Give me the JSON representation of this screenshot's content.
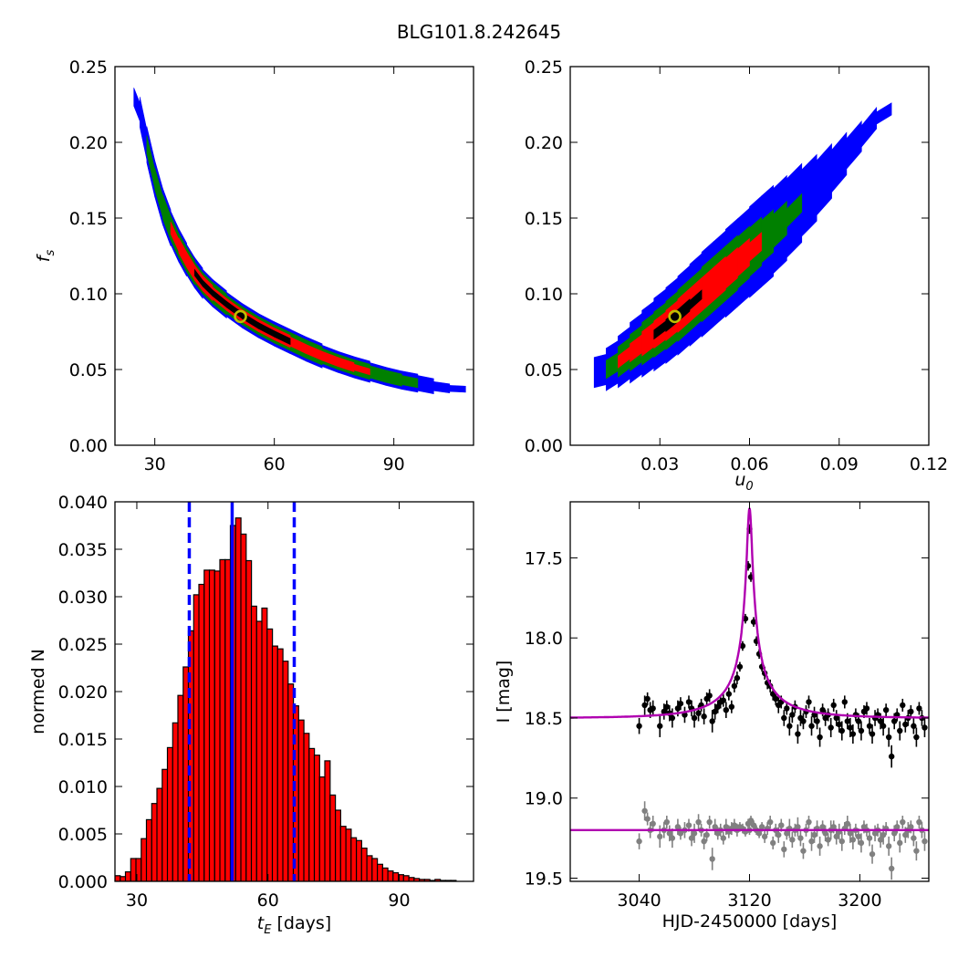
{
  "figure": {
    "title": "BLG101.8.242645"
  },
  "colors": {
    "blue": "#0000ff",
    "green": "#008000",
    "red": "#ff0000",
    "black": "#000000",
    "marker_edge": "#bfbf00",
    "model": "#b000b0",
    "grey": "#808080"
  },
  "chart_data": [
    {
      "id": "fs_vs_tE",
      "type": "heatmap",
      "title": "",
      "xlabel": "",
      "ylabel": "f_s",
      "xlim": [
        20,
        110
      ],
      "ylim": [
        0.0,
        0.25
      ],
      "xticks": [
        30,
        60,
        90
      ],
      "yticks": [
        0.0,
        0.05,
        0.1,
        0.15,
        0.2,
        0.25
      ],
      "best_fit": {
        "x": 51.5,
        "y": 0.085
      },
      "confidence_band": {
        "x": [
          25.5,
          27.0,
          29.0,
          31.0,
          33.0,
          35.0,
          37.0,
          39.0,
          41.0,
          43.0,
          46.0,
          50.0,
          54.0,
          58.0,
          62.0,
          66.0,
          70.0,
          74.0,
          78.0,
          82.0,
          86.0,
          90.0,
          94.0,
          98.0,
          102.0,
          106.0
        ],
        "y": [
          0.23,
          0.21,
          0.187,
          0.165,
          0.15,
          0.137,
          0.127,
          0.118,
          0.11,
          0.104,
          0.097,
          0.089,
          0.082,
          0.076,
          0.071,
          0.066,
          0.061,
          0.057,
          0.053,
          0.05,
          0.047,
          0.044,
          0.042,
          0.04,
          0.038,
          0.037
        ],
        "halfwidth_blue": [
          0.006,
          0.01,
          0.012,
          0.012,
          0.012,
          0.011,
          0.011,
          0.01,
          0.01,
          0.009,
          0.009,
          0.008,
          0.008,
          0.008,
          0.008,
          0.008,
          0.008,
          0.007,
          0.007,
          0.007,
          0.006,
          0.006,
          0.006,
          0.005,
          0.003,
          0.002
        ],
        "halfwidth_green": [
          0.0,
          0.0,
          0.006,
          0.007,
          0.008,
          0.008,
          0.008,
          0.008,
          0.007,
          0.007,
          0.007,
          0.006,
          0.006,
          0.006,
          0.006,
          0.006,
          0.006,
          0.005,
          0.005,
          0.005,
          0.004,
          0.004,
          0.003,
          0.0,
          0.0,
          0.0
        ],
        "halfwidth_red": [
          0.0,
          0.0,
          0.0,
          0.0,
          0.0,
          0.004,
          0.005,
          0.005,
          0.005,
          0.005,
          0.004,
          0.004,
          0.004,
          0.004,
          0.004,
          0.003,
          0.003,
          0.003,
          0.003,
          0.002,
          0.0,
          0.0,
          0.0,
          0.0,
          0.0,
          0.0
        ],
        "halfwidth_black": [
          0.0,
          0.0,
          0.0,
          0.0,
          0.0,
          0.0,
          0.0,
          0.0,
          0.002,
          0.002,
          0.002,
          0.002,
          0.002,
          0.002,
          0.002,
          0.0,
          0.0,
          0.0,
          0.0,
          0.0,
          0.0,
          0.0,
          0.0,
          0.0,
          0.0,
          0.0
        ]
      }
    },
    {
      "id": "fs_vs_u0",
      "type": "heatmap",
      "title": "",
      "xlabel": "u_0",
      "ylabel": "",
      "xlim": [
        0.0,
        0.12
      ],
      "ylim": [
        0.0,
        0.25
      ],
      "xticks": [
        0.03,
        0.06,
        0.09,
        0.12
      ],
      "yticks": [
        0.0,
        0.05,
        0.1,
        0.15,
        0.2,
        0.25
      ],
      "best_fit": {
        "x": 0.035,
        "y": 0.085
      },
      "confidence_band": {
        "x": [
          0.01,
          0.014,
          0.018,
          0.022,
          0.026,
          0.03,
          0.034,
          0.038,
          0.042,
          0.046,
          0.05,
          0.054,
          0.058,
          0.062,
          0.066,
          0.07,
          0.075,
          0.08,
          0.085,
          0.09,
          0.095,
          0.1,
          0.105
        ],
        "y": [
          0.048,
          0.052,
          0.058,
          0.064,
          0.07,
          0.076,
          0.082,
          0.089,
          0.096,
          0.103,
          0.11,
          0.117,
          0.124,
          0.131,
          0.138,
          0.145,
          0.155,
          0.165,
          0.175,
          0.187,
          0.198,
          0.21,
          0.222
        ],
        "halfwidth_blue": [
          0.01,
          0.014,
          0.017,
          0.02,
          0.022,
          0.024,
          0.025,
          0.026,
          0.027,
          0.028,
          0.028,
          0.029,
          0.029,
          0.03,
          0.03,
          0.028,
          0.026,
          0.022,
          0.018,
          0.014,
          0.01,
          0.007,
          0.004
        ],
        "halfwidth_green": [
          0.0,
          0.006,
          0.01,
          0.012,
          0.014,
          0.015,
          0.016,
          0.017,
          0.017,
          0.018,
          0.018,
          0.018,
          0.017,
          0.016,
          0.014,
          0.011,
          0.006,
          0.0,
          0.0,
          0.0,
          0.0,
          0.0,
          0.0
        ],
        "halfwidth_red": [
          0.0,
          0.0,
          0.004,
          0.006,
          0.008,
          0.009,
          0.01,
          0.011,
          0.011,
          0.011,
          0.011,
          0.01,
          0.009,
          0.006,
          0.0,
          0.0,
          0.0,
          0.0,
          0.0,
          0.0,
          0.0,
          0.0,
          0.0
        ],
        "halfwidth_black": [
          0.0,
          0.0,
          0.0,
          0.0,
          0.0,
          0.003,
          0.004,
          0.004,
          0.003,
          0.0,
          0.0,
          0.0,
          0.0,
          0.0,
          0.0,
          0.0,
          0.0,
          0.0,
          0.0,
          0.0,
          0.0,
          0.0,
          0.0
        ]
      }
    },
    {
      "id": "tE_histogram",
      "type": "bar",
      "title": "",
      "xlabel": "t_E [days]",
      "ylabel": "normed N",
      "xlim": [
        25,
        107
      ],
      "ylim": [
        0.0,
        0.04
      ],
      "xticks": [
        30,
        60,
        90
      ],
      "yticks": [
        0.0,
        0.005,
        0.01,
        0.015,
        0.02,
        0.025,
        0.03,
        0.035,
        0.04
      ],
      "bin_width": 1.2,
      "bin_start": 25,
      "values": [
        0.0006,
        0.0005,
        0.001,
        0.0024,
        0.0024,
        0.0045,
        0.0065,
        0.0082,
        0.0098,
        0.0118,
        0.0141,
        0.0167,
        0.0196,
        0.0226,
        0.0264,
        0.0302,
        0.0313,
        0.0328,
        0.0328,
        0.0327,
        0.0339,
        0.0339,
        0.0375,
        0.0383,
        0.0366,
        0.0338,
        0.029,
        0.0274,
        0.0288,
        0.0266,
        0.0248,
        0.0245,
        0.0232,
        0.0208,
        0.0185,
        0.017,
        0.0156,
        0.014,
        0.0133,
        0.011,
        0.0127,
        0.0091,
        0.0075,
        0.0058,
        0.0055,
        0.0046,
        0.0043,
        0.0035,
        0.0027,
        0.0024,
        0.0018,
        0.0014,
        0.0011,
        0.0009,
        0.0007,
        0.0006,
        0.0004,
        0.0003,
        0.0002,
        0.0002,
        0.0001,
        0.0002,
        0.0001,
        0.0001,
        0.0001,
        0.0,
        0.0
      ],
      "best_fit_line": 51.8,
      "confidence_lines": [
        42.0,
        66.0
      ]
    },
    {
      "id": "light_curve",
      "type": "scatter",
      "title": "",
      "xlabel": "HJD-2450000 [days]",
      "ylabel": "I [mag]",
      "xlim": [
        2990,
        3250
      ],
      "ylim": [
        19.52,
        17.15
      ],
      "xticks": [
        3040,
        3120,
        3200
      ],
      "yticks": [
        17.5,
        18.0,
        18.5,
        19.0,
        19.5
      ],
      "model": {
        "t0": 3120.0,
        "tE": 51.5,
        "u0": 0.035,
        "baseline_mag": 18.5,
        "fs": 0.085
      },
      "residual_baseline_mag": 19.2,
      "data_points": {
        "t": [
          3040,
          3044,
          3046,
          3048,
          3050,
          3055,
          3058,
          3060,
          3062,
          3064,
          3068,
          3070,
          3073,
          3076,
          3078,
          3080,
          3083,
          3085,
          3087,
          3089,
          3091,
          3093,
          3095,
          3097,
          3099,
          3101,
          3103,
          3105,
          3107,
          3109,
          3111,
          3113,
          3115,
          3117,
          3119,
          3120,
          3121,
          3123,
          3125,
          3127,
          3129,
          3131,
          3133,
          3135,
          3137,
          3139,
          3141,
          3143,
          3145,
          3147,
          3149,
          3151,
          3153,
          3155,
          3157,
          3159,
          3161,
          3163,
          3165,
          3167,
          3169,
          3171,
          3173,
          3175,
          3177,
          3179,
          3181,
          3183,
          3185,
          3187,
          3189,
          3191,
          3193,
          3195,
          3197,
          3199,
          3201,
          3203,
          3205,
          3207,
          3209,
          3211,
          3213,
          3215,
          3217,
          3219,
          3221,
          3223,
          3225,
          3227,
          3229,
          3231,
          3233,
          3235,
          3237,
          3239,
          3241,
          3243,
          3245,
          3247
        ],
        "mag": [
          18.55,
          18.42,
          18.38,
          18.45,
          18.44,
          18.55,
          18.46,
          18.43,
          18.47,
          18.5,
          18.44,
          18.41,
          18.48,
          18.4,
          18.44,
          18.5,
          18.47,
          18.42,
          18.49,
          18.38,
          18.36,
          18.52,
          18.46,
          18.43,
          18.4,
          18.39,
          18.45,
          18.35,
          18.43,
          18.3,
          18.25,
          18.18,
          18.05,
          17.88,
          17.55,
          17.32,
          17.62,
          17.9,
          18.02,
          18.1,
          18.18,
          18.22,
          18.28,
          18.3,
          18.35,
          18.38,
          18.42,
          18.4,
          18.5,
          18.44,
          18.55,
          18.48,
          18.43,
          18.6,
          18.5,
          18.52,
          18.46,
          18.4,
          18.55,
          18.48,
          18.52,
          18.62,
          18.45,
          18.5,
          18.48,
          18.56,
          18.42,
          18.5,
          18.54,
          18.58,
          18.4,
          18.52,
          18.56,
          18.6,
          18.48,
          18.52,
          18.58,
          18.46,
          18.44,
          18.55,
          18.6,
          18.5,
          18.48,
          18.52,
          18.55,
          18.45,
          18.62,
          18.74,
          18.52,
          18.48,
          18.58,
          18.42,
          18.54,
          18.5,
          18.46,
          18.55,
          18.62,
          18.44,
          18.5,
          18.56
        ],
        "err": [
          0.05,
          0.06,
          0.04,
          0.05,
          0.05,
          0.07,
          0.05,
          0.04,
          0.05,
          0.06,
          0.05,
          0.04,
          0.05,
          0.04,
          0.05,
          0.06,
          0.05,
          0.04,
          0.05,
          0.04,
          0.04,
          0.07,
          0.05,
          0.04,
          0.04,
          0.04,
          0.05,
          0.04,
          0.04,
          0.04,
          0.04,
          0.03,
          0.03,
          0.03,
          0.03,
          0.03,
          0.03,
          0.03,
          0.03,
          0.03,
          0.03,
          0.04,
          0.04,
          0.04,
          0.04,
          0.04,
          0.05,
          0.04,
          0.05,
          0.04,
          0.06,
          0.05,
          0.04,
          0.06,
          0.05,
          0.05,
          0.04,
          0.04,
          0.06,
          0.05,
          0.05,
          0.06,
          0.04,
          0.05,
          0.04,
          0.06,
          0.04,
          0.05,
          0.05,
          0.06,
          0.04,
          0.05,
          0.06,
          0.06,
          0.04,
          0.05,
          0.06,
          0.04,
          0.04,
          0.05,
          0.06,
          0.05,
          0.04,
          0.05,
          0.06,
          0.04,
          0.06,
          0.07,
          0.05,
          0.04,
          0.06,
          0.04,
          0.05,
          0.05,
          0.04,
          0.05,
          0.06,
          0.04,
          0.05,
          0.06
        ]
      },
      "residual_points": {
        "t": [
          3040,
          3044,
          3046,
          3048,
          3050,
          3055,
          3058,
          3060,
          3062,
          3064,
          3068,
          3070,
          3073,
          3076,
          3078,
          3080,
          3083,
          3085,
          3087,
          3089,
          3091,
          3093,
          3095,
          3097,
          3099,
          3101,
          3103,
          3105,
          3107,
          3109,
          3111,
          3113,
          3115,
          3117,
          3119,
          3120,
          3121,
          3123,
          3125,
          3127,
          3129,
          3131,
          3133,
          3135,
          3137,
          3139,
          3141,
          3143,
          3145,
          3147,
          3149,
          3151,
          3153,
          3155,
          3157,
          3159,
          3161,
          3163,
          3165,
          3167,
          3169,
          3171,
          3173,
          3175,
          3177,
          3179,
          3181,
          3183,
          3185,
          3187,
          3189,
          3191,
          3193,
          3195,
          3197,
          3199,
          3201,
          3203,
          3205,
          3207,
          3209,
          3211,
          3213,
          3215,
          3217,
          3219,
          3221,
          3223,
          3225,
          3227,
          3229,
          3231,
          3233,
          3235,
          3237,
          3239,
          3241,
          3243,
          3245,
          3247
        ],
        "mag": [
          19.27,
          19.08,
          19.13,
          19.2,
          19.16,
          19.24,
          19.2,
          19.15,
          19.22,
          19.25,
          19.18,
          19.22,
          19.2,
          19.17,
          19.25,
          19.22,
          19.15,
          19.2,
          19.27,
          19.23,
          19.15,
          19.38,
          19.18,
          19.22,
          19.2,
          19.25,
          19.18,
          19.21,
          19.19,
          19.17,
          19.2,
          19.18,
          19.19,
          19.21,
          19.16,
          19.2,
          19.14,
          19.17,
          19.2,
          19.22,
          19.18,
          19.24,
          19.19,
          19.15,
          19.28,
          19.2,
          19.23,
          19.17,
          19.32,
          19.22,
          19.19,
          19.26,
          19.2,
          19.18,
          19.25,
          19.33,
          19.2,
          19.15,
          19.27,
          19.23,
          19.19,
          19.3,
          19.18,
          19.22,
          19.26,
          19.2,
          19.18,
          19.24,
          19.21,
          19.27,
          19.19,
          19.16,
          19.22,
          19.26,
          19.2,
          19.24,
          19.28,
          19.18,
          19.2,
          19.25,
          19.35,
          19.22,
          19.2,
          19.26,
          19.23,
          19.19,
          19.3,
          19.44,
          19.22,
          19.18,
          19.28,
          19.15,
          19.23,
          19.2,
          19.18,
          19.25,
          19.33,
          19.15,
          19.2,
          19.27
        ],
        "err": [
          0.05,
          0.06,
          0.04,
          0.05,
          0.05,
          0.07,
          0.05,
          0.04,
          0.05,
          0.06,
          0.05,
          0.04,
          0.05,
          0.04,
          0.05,
          0.06,
          0.05,
          0.04,
          0.05,
          0.04,
          0.04,
          0.07,
          0.05,
          0.04,
          0.04,
          0.04,
          0.05,
          0.04,
          0.04,
          0.04,
          0.04,
          0.03,
          0.03,
          0.03,
          0.03,
          0.03,
          0.03,
          0.03,
          0.03,
          0.03,
          0.03,
          0.04,
          0.04,
          0.04,
          0.04,
          0.04,
          0.05,
          0.04,
          0.05,
          0.04,
          0.06,
          0.05,
          0.04,
          0.06,
          0.05,
          0.05,
          0.04,
          0.04,
          0.06,
          0.05,
          0.05,
          0.06,
          0.04,
          0.05,
          0.04,
          0.06,
          0.04,
          0.05,
          0.05,
          0.06,
          0.04,
          0.05,
          0.06,
          0.06,
          0.04,
          0.05,
          0.06,
          0.04,
          0.04,
          0.05,
          0.06,
          0.05,
          0.04,
          0.05,
          0.06,
          0.04,
          0.06,
          0.07,
          0.05,
          0.04,
          0.06,
          0.04,
          0.05,
          0.05,
          0.04,
          0.05,
          0.06,
          0.04,
          0.05,
          0.06
        ]
      }
    }
  ]
}
